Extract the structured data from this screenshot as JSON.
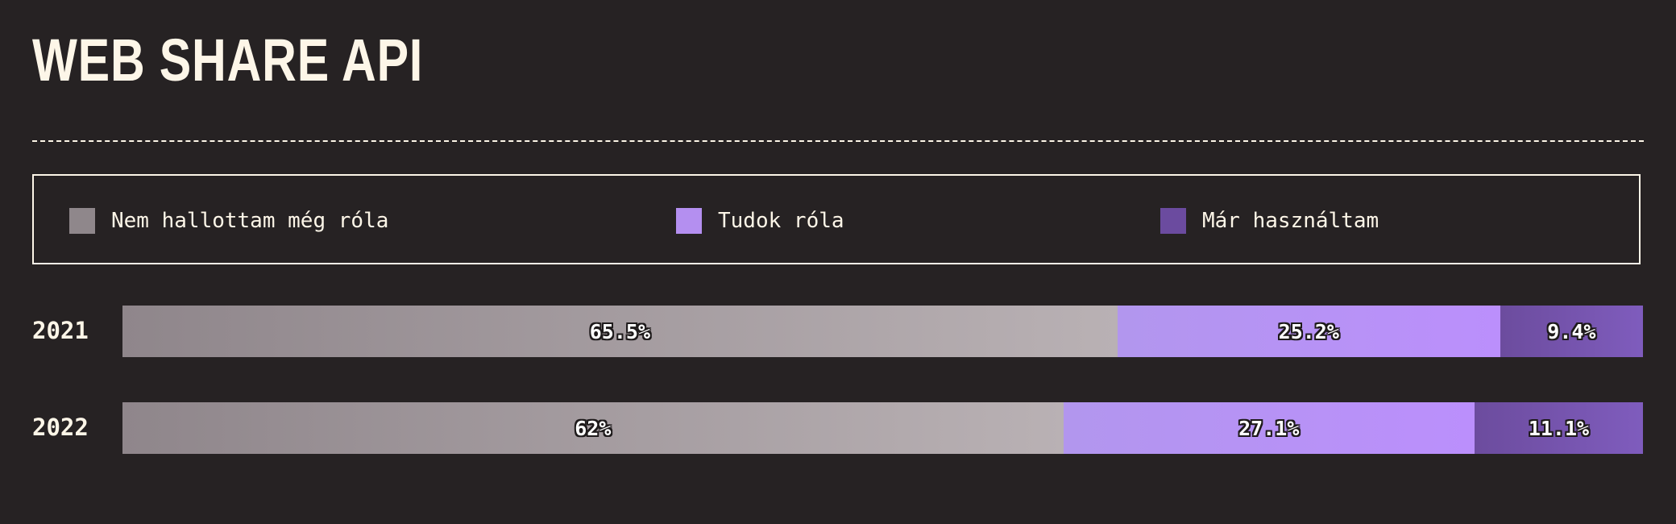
{
  "title": "WEB SHARE API",
  "legend": [
    {
      "label": "Nem hallottam még róla",
      "color": "#8f878b"
    },
    {
      "label": "Tudok róla",
      "color": "#b48ff0"
    },
    {
      "label": "Már használtam",
      "color": "#6b4b9f"
    }
  ],
  "chart_data": {
    "type": "bar",
    "orientation": "horizontal-stacked-percent",
    "title": "WEB SHARE API",
    "categories": [
      "2021",
      "2022"
    ],
    "series": [
      {
        "name": "Nem hallottam még róla",
        "values": [
          65.5,
          62
        ],
        "labels": [
          "65.5%",
          "62%"
        ]
      },
      {
        "name": "Tudok róla",
        "values": [
          25.2,
          27.1
        ],
        "labels": [
          "25.2%",
          "27.1%"
        ]
      },
      {
        "name": "Már használtam",
        "values": [
          9.4,
          11.1
        ],
        "labels": [
          "9.4%",
          "11.1%"
        ]
      }
    ],
    "xlim": [
      0,
      100
    ],
    "legend_position": "top"
  }
}
